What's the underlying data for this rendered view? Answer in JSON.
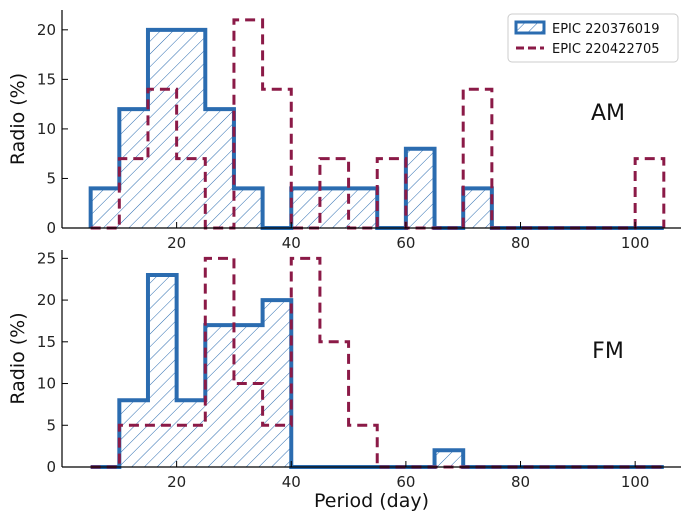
{
  "chart_data": [
    {
      "type": "histogram",
      "panel_label": "AM",
      "ylabel": "Radio (%)",
      "xlabel": "",
      "xlim": [
        0,
        108
      ],
      "ylim": [
        0,
        22
      ],
      "xticks": [
        20,
        40,
        60,
        80,
        100
      ],
      "yticks": [
        0,
        5,
        10,
        15,
        20
      ],
      "legend_position": "top-right",
      "series": [
        {
          "name": "EPIC 220376019",
          "style": "solid-hatched",
          "color": "#2b6cb0",
          "bin_edges": [
            5,
            10,
            15,
            20,
            25,
            30,
            35,
            40,
            45,
            50,
            55,
            60,
            65,
            70,
            75,
            80,
            85,
            90,
            95,
            100,
            105
          ],
          "values": [
            4,
            12,
            20,
            20,
            12,
            4,
            0,
            4,
            4,
            4,
            0,
            8,
            0,
            4,
            0,
            0,
            0,
            0,
            0,
            0
          ]
        },
        {
          "name": "EPIC 220422705",
          "style": "dashed",
          "color": "#8b1a47",
          "bin_edges": [
            5,
            10,
            15,
            20,
            25,
            30,
            35,
            40,
            45,
            50,
            55,
            60,
            65,
            70,
            75,
            80,
            85,
            90,
            95,
            100,
            105
          ],
          "values": [
            0,
            7,
            14,
            7,
            0,
            21,
            14,
            0,
            7,
            0,
            7,
            0,
            0,
            14,
            0,
            0,
            0,
            0,
            0,
            7
          ]
        }
      ]
    },
    {
      "type": "histogram",
      "panel_label": "FM",
      "ylabel": "Radio (%)",
      "xlabel": "Period (day)",
      "xlim": [
        0,
        108
      ],
      "ylim": [
        0,
        26
      ],
      "xticks": [
        20,
        40,
        60,
        80,
        100
      ],
      "yticks": [
        0,
        5,
        10,
        15,
        20,
        25
      ],
      "series": [
        {
          "name": "EPIC 220376019",
          "style": "solid-hatched",
          "color": "#2b6cb0",
          "bin_edges": [
            5,
            10,
            15,
            20,
            25,
            30,
            35,
            40,
            45,
            50,
            55,
            60,
            65,
            70,
            75,
            80,
            85,
            90,
            95,
            100,
            105
          ],
          "values": [
            0,
            8,
            23,
            8,
            17,
            17,
            20,
            0,
            0,
            0,
            0,
            0,
            2,
            0,
            0,
            0,
            0,
            0,
            0,
            0
          ]
        },
        {
          "name": "EPIC 220422705",
          "style": "dashed",
          "color": "#8b1a47",
          "bin_edges": [
            5,
            10,
            15,
            20,
            25,
            30,
            35,
            40,
            45,
            50,
            55,
            60,
            65,
            70,
            75,
            80,
            85,
            90,
            95,
            100,
            105
          ],
          "values": [
            0,
            5,
            5,
            5,
            25,
            10,
            5,
            25,
            15,
            5,
            0,
            0,
            0,
            0,
            0,
            0,
            0,
            0,
            0,
            0
          ]
        }
      ]
    }
  ]
}
